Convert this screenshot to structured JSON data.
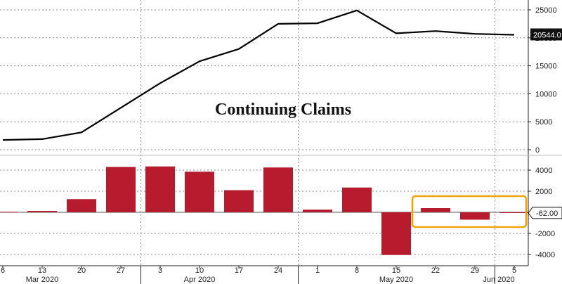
{
  "chart_data": [
    {
      "type": "line",
      "title": "Continuing Claims",
      "x": [
        "6",
        "13",
        "20",
        "27",
        "3",
        "10",
        "17",
        "24",
        "1",
        "8",
        "15",
        "22",
        "29",
        "5"
      ],
      "series": [
        {
          "values": [
            1750,
            1900,
            3100,
            7500,
            11900,
            15800,
            18000,
            22500,
            22600,
            24900,
            20800,
            21200,
            20700,
            20544
          ]
        }
      ],
      "ylim": [
        0,
        25000
      ],
      "yticks": [
        "25000",
        "20000",
        "15000",
        "10000",
        "5000",
        "0"
      ],
      "last_value_label": "20544.0",
      "color": "#000000",
      "grid": true
    },
    {
      "type": "bar",
      "x": [
        "6",
        "13",
        "20",
        "27",
        "3",
        "10",
        "17",
        "24",
        "1",
        "8",
        "15",
        "22",
        "29",
        "5"
      ],
      "series": [
        {
          "values": [
            50,
            130,
            1250,
            4300,
            4350,
            3850,
            2100,
            4250,
            250,
            2350,
            -4050,
            400,
            -700,
            -62
          ]
        }
      ],
      "ylim": [
        -4500,
        5000
      ],
      "yticks": [
        "4000",
        "2000",
        "-62.00",
        "-2000",
        "-4000"
      ],
      "last_value_label": "-62.00",
      "color": "#b71c2e",
      "highlight_color": "#f0a30a",
      "grid": true
    }
  ],
  "x_axis": {
    "tick_labels": [
      "6",
      "13",
      "20",
      "27",
      "3",
      "10",
      "17",
      "24",
      "1",
      "8",
      "15",
      "22",
      "29",
      "5"
    ],
    "month_labels": [
      {
        "label": "Mar 2020",
        "index": 1
      },
      {
        "label": "Apr 2020",
        "index": 5
      },
      {
        "label": "May 2020",
        "index": 10
      },
      {
        "label": "Jun 2020",
        "index": 13
      }
    ],
    "month_starts": [
      4,
      8,
      13
    ]
  }
}
